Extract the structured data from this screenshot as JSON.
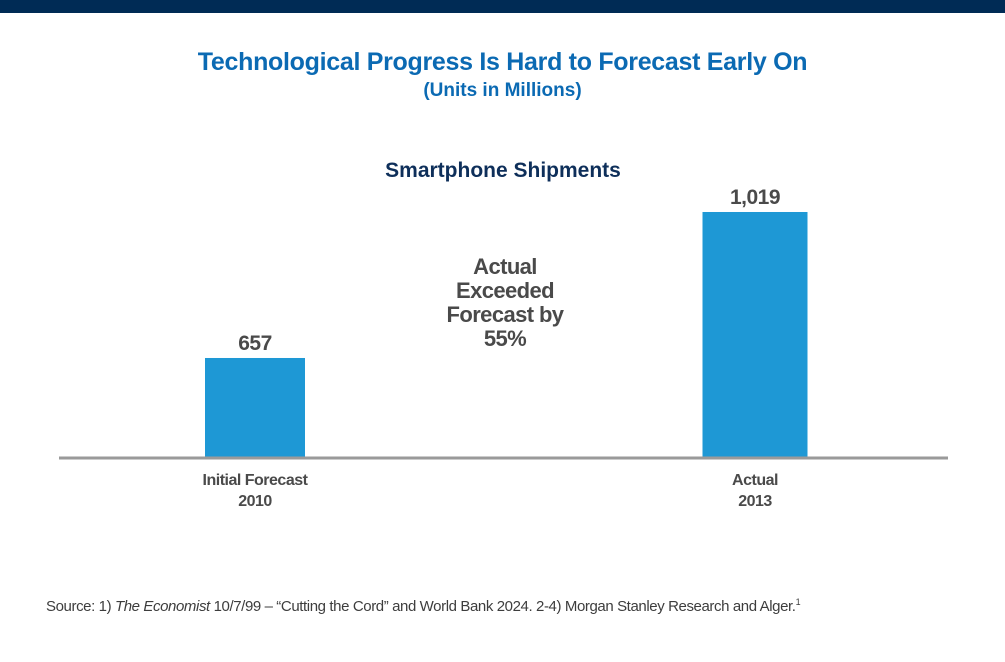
{
  "header": {
    "title": "Technological Progress Is Hard to Forecast Early On",
    "subtitle": "(Units in Millions)"
  },
  "chart_data": {
    "type": "bar",
    "title": "Smartphone Shipments",
    "unit": "Millions of units",
    "categories": [
      "Initial Forecast 2010",
      "Actual 2013"
    ],
    "category_lines": [
      [
        "Initial Forecast",
        "2010"
      ],
      [
        "Actual",
        "2013"
      ]
    ],
    "values": [
      657,
      1019
    ],
    "data_labels": [
      "657",
      "1,019"
    ],
    "annotation": [
      "Actual",
      "Exceeded",
      "Forecast by",
      "55%"
    ],
    "colors": {
      "bar": "#1e98d5",
      "title": "#0e2f5a",
      "labels": "#4a4a4a",
      "axis": "#9a9a9a"
    },
    "xlabel": "",
    "ylabel": "",
    "grid": false,
    "legend": "none"
  },
  "footer": {
    "prefix": "Source: 1) ",
    "italic": "The Economist",
    "rest": " 10/7/99 – “Cutting the Cord” and World Bank 2024. 2-4) Morgan Stanley Research and Alger.",
    "superscript": "1"
  }
}
